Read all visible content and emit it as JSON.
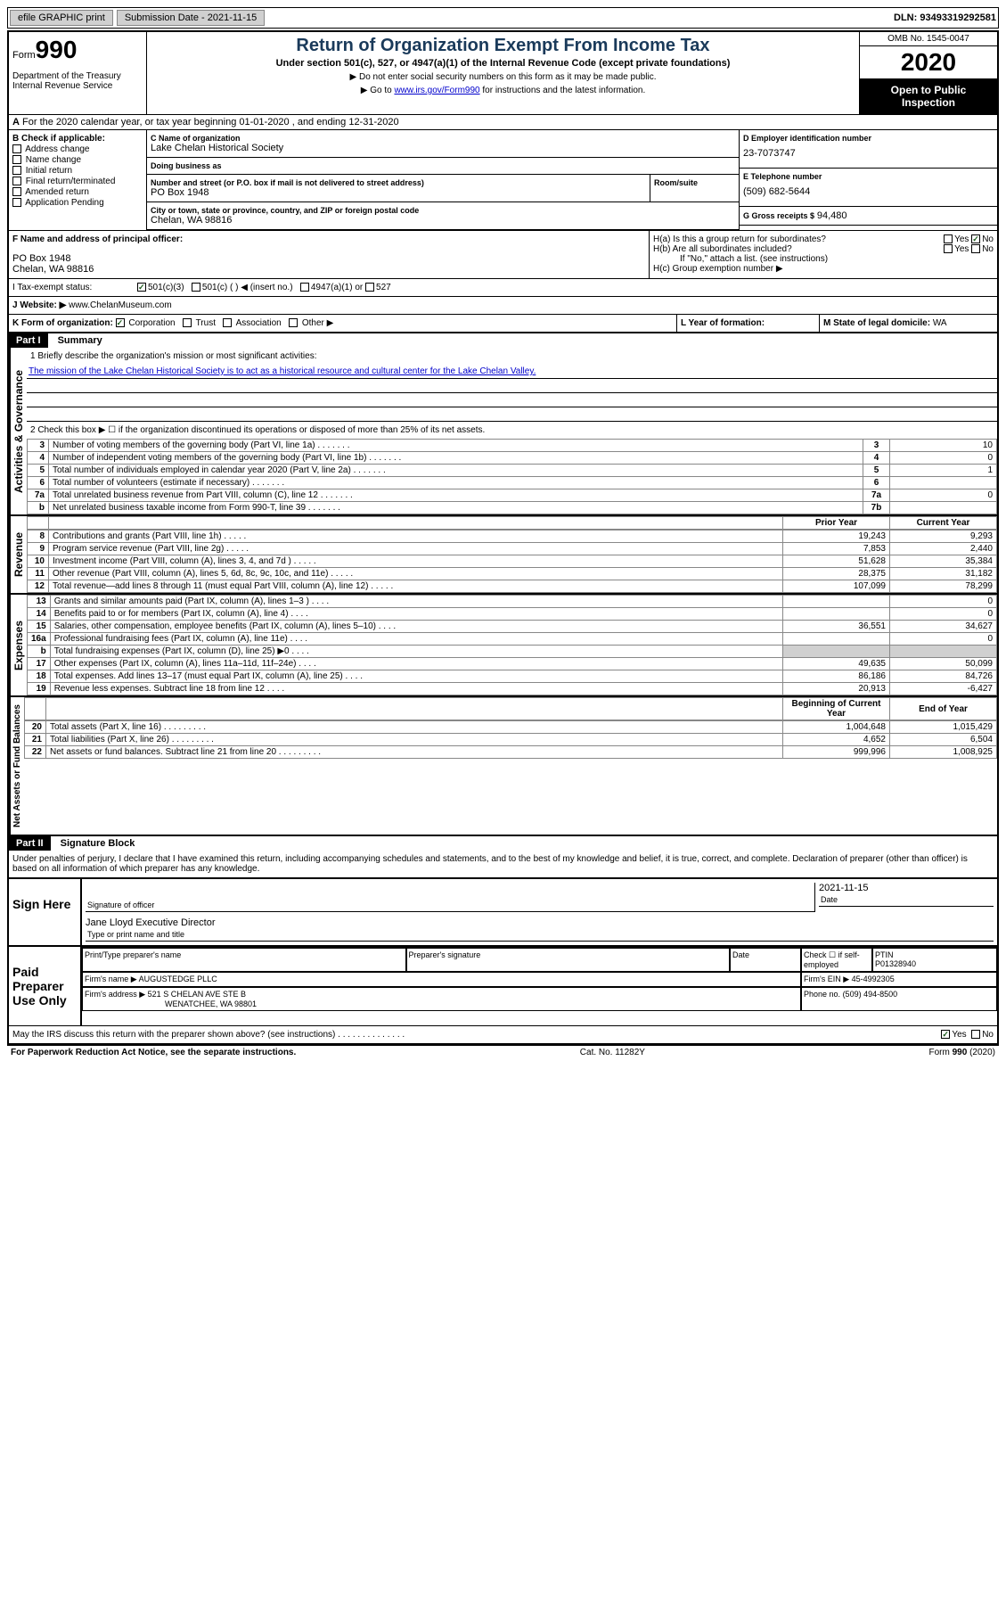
{
  "top": {
    "efile": "efile GRAPHIC print",
    "submission_label": "Submission Date - 2021-11-15",
    "dln": "DLN: 93493319292581"
  },
  "header": {
    "form_prefix": "Form",
    "form_number": "990",
    "dept": "Department of the Treasury\nInternal Revenue Service",
    "title": "Return of Organization Exempt From Income Tax",
    "subtitle": "Under section 501(c), 527, or 4947(a)(1) of the Internal Revenue Code (except private foundations)",
    "note1": "▶ Do not enter social security numbers on this form as it may be made public.",
    "note2_pre": "▶ Go to ",
    "note2_link": "www.irs.gov/Form990",
    "note2_post": " for instructions and the latest information.",
    "omb": "OMB No. 1545-0047",
    "year": "2020",
    "inspection": "Open to Public Inspection"
  },
  "line_a": "For the 2020 calendar year, or tax year beginning 01-01-2020   , and ending 12-31-2020",
  "b_checks": {
    "label": "B Check if applicable:",
    "items": [
      "Address change",
      "Name change",
      "Initial return",
      "Final return/terminated",
      "Amended return",
      "Application Pending"
    ]
  },
  "c": {
    "name_label": "C Name of organization",
    "name": "Lake Chelan Historical Society",
    "dba_label": "Doing business as",
    "dba": "",
    "addr_label": "Number and street (or P.O. box if mail is not delivered to street address)",
    "room_label": "Room/suite",
    "addr": "PO Box 1948",
    "city_label": "City or town, state or province, country, and ZIP or foreign postal code",
    "city": "Chelan, WA  98816"
  },
  "d": {
    "label": "D Employer identification number",
    "value": "23-7073747"
  },
  "e": {
    "label": "E Telephone number",
    "value": "(509) 682-5644"
  },
  "g": {
    "label": "G Gross receipts $",
    "value": "94,480"
  },
  "f": {
    "label": "F Name and address of principal officer:",
    "line1": "PO Box 1948",
    "line2": "Chelan, WA  98816"
  },
  "h": {
    "a_label": "H(a)  Is this a group return for subordinates?",
    "a_yes": "Yes",
    "a_no": "No",
    "b_label": "H(b)  Are all subordinates included?",
    "b_yes": "Yes",
    "b_no": "No",
    "b_note": "If \"No,\" attach a list. (see instructions)",
    "c_label": "H(c)  Group exemption number ▶"
  },
  "i": {
    "label": "I  Tax-exempt status:",
    "opt1": "501(c)(3)",
    "opt2": "501(c) (  ) ◀ (insert no.)",
    "opt3": "4947(a)(1) or",
    "opt4": "527"
  },
  "j": {
    "label": "J  Website: ▶",
    "value": "www.ChelanMuseum.com"
  },
  "k": {
    "label": "K Form of organization:",
    "opts": [
      "Corporation",
      "Trust",
      "Association",
      "Other ▶"
    ]
  },
  "l": {
    "label": "L Year of formation:",
    "value": ""
  },
  "m": {
    "label": "M State of legal domicile:",
    "value": "WA"
  },
  "part1": {
    "header": "Part I",
    "title": "Summary",
    "line1_label": "1  Briefly describe the organization's mission or most significant activities:",
    "mission": "The mission of the Lake Chelan Historical Society is to act as a historical resource and cultural center for the Lake Chelan Valley.",
    "line2": "2  Check this box ▶ ☐  if the organization discontinued its operations or disposed of more than 25% of its net assets.",
    "gov_label": "Activities & Governance",
    "rev_label": "Revenue",
    "exp_label": "Expenses",
    "net_label": "Net Assets or Fund Balances",
    "prior_year": "Prior Year",
    "current_year": "Current Year",
    "begin_year": "Beginning of Current Year",
    "end_year": "End of Year",
    "lines_gov": [
      {
        "n": "3",
        "t": "Number of voting members of the governing body (Part VI, line 1a)",
        "box": "3",
        "v": "10"
      },
      {
        "n": "4",
        "t": "Number of independent voting members of the governing body (Part VI, line 1b)",
        "box": "4",
        "v": "0"
      },
      {
        "n": "5",
        "t": "Total number of individuals employed in calendar year 2020 (Part V, line 2a)",
        "box": "5",
        "v": "1"
      },
      {
        "n": "6",
        "t": "Total number of volunteers (estimate if necessary)",
        "box": "6",
        "v": ""
      },
      {
        "n": "7a",
        "t": "Total unrelated business revenue from Part VIII, column (C), line 12",
        "box": "7a",
        "v": "0"
      },
      {
        "n": "b",
        "t": "Net unrelated business taxable income from Form 990-T, line 39",
        "box": "7b",
        "v": ""
      }
    ],
    "lines_rev": [
      {
        "n": "8",
        "t": "Contributions and grants (Part VIII, line 1h)",
        "p": "19,243",
        "c": "9,293"
      },
      {
        "n": "9",
        "t": "Program service revenue (Part VIII, line 2g)",
        "p": "7,853",
        "c": "2,440"
      },
      {
        "n": "10",
        "t": "Investment income (Part VIII, column (A), lines 3, 4, and 7d )",
        "p": "51,628",
        "c": "35,384"
      },
      {
        "n": "11",
        "t": "Other revenue (Part VIII, column (A), lines 5, 6d, 8c, 9c, 10c, and 11e)",
        "p": "28,375",
        "c": "31,182"
      },
      {
        "n": "12",
        "t": "Total revenue—add lines 8 through 11 (must equal Part VIII, column (A), line 12)",
        "p": "107,099",
        "c": "78,299"
      }
    ],
    "lines_exp": [
      {
        "n": "13",
        "t": "Grants and similar amounts paid (Part IX, column (A), lines 1–3 )",
        "p": "",
        "c": "0"
      },
      {
        "n": "14",
        "t": "Benefits paid to or for members (Part IX, column (A), line 4)",
        "p": "",
        "c": "0"
      },
      {
        "n": "15",
        "t": "Salaries, other compensation, employee benefits (Part IX, column (A), lines 5–10)",
        "p": "36,551",
        "c": "34,627"
      },
      {
        "n": "16a",
        "t": "Professional fundraising fees (Part IX, column (A), line 11e)",
        "p": "",
        "c": "0"
      },
      {
        "n": "b",
        "t": "Total fundraising expenses (Part IX, column (D), line 25) ▶0",
        "p": "SHADED",
        "c": "SHADED"
      },
      {
        "n": "17",
        "t": "Other expenses (Part IX, column (A), lines 11a–11d, 11f–24e)",
        "p": "49,635",
        "c": "50,099"
      },
      {
        "n": "18",
        "t": "Total expenses. Add lines 13–17 (must equal Part IX, column (A), line 25)",
        "p": "86,186",
        "c": "84,726"
      },
      {
        "n": "19",
        "t": "Revenue less expenses. Subtract line 18 from line 12",
        "p": "20,913",
        "c": "-6,427"
      }
    ],
    "lines_net": [
      {
        "n": "20",
        "t": "Total assets (Part X, line 16)",
        "p": "1,004,648",
        "c": "1,015,429"
      },
      {
        "n": "21",
        "t": "Total liabilities (Part X, line 26)",
        "p": "4,652",
        "c": "6,504"
      },
      {
        "n": "22",
        "t": "Net assets or fund balances. Subtract line 21 from line 20",
        "p": "999,996",
        "c": "1,008,925"
      }
    ]
  },
  "part2": {
    "header": "Part II",
    "title": "Signature Block",
    "perjury": "Under penalties of perjury, I declare that I have examined this return, including accompanying schedules and statements, and to the best of my knowledge and belief, it is true, correct, and complete. Declaration of preparer (other than officer) is based on all information of which preparer has any knowledge.",
    "sign_here": "Sign Here",
    "sig_officer": "Signature of officer",
    "sig_date": "2021-11-15",
    "date_label": "Date",
    "officer_name": "Jane Lloyd  Executive Director",
    "type_name": "Type or print name and title",
    "paid_prep": "Paid Preparer Use Only",
    "prep_name_label": "Print/Type preparer's name",
    "prep_sig_label": "Preparer's signature",
    "self_emp": "Check ☐ if self-employed",
    "ptin_label": "PTIN",
    "ptin": "P01328940",
    "firm_name_label": "Firm's name   ▶",
    "firm_name": "AUGUSTEDGE PLLC",
    "firm_ein_label": "Firm's EIN ▶",
    "firm_ein": "45-4992305",
    "firm_addr_label": "Firm's address ▶",
    "firm_addr1": "521 S CHELAN AVE STE B",
    "firm_addr2": "WENATCHEE, WA  98801",
    "phone_label": "Phone no.",
    "phone": "(509) 494-8500",
    "discuss": "May the IRS discuss this return with the preparer shown above? (see instructions)",
    "yes": "Yes",
    "no": "No"
  },
  "footer": {
    "paperwork": "For Paperwork Reduction Act Notice, see the separate instructions.",
    "cat": "Cat. No. 11282Y",
    "form": "Form 990 (2020)"
  }
}
